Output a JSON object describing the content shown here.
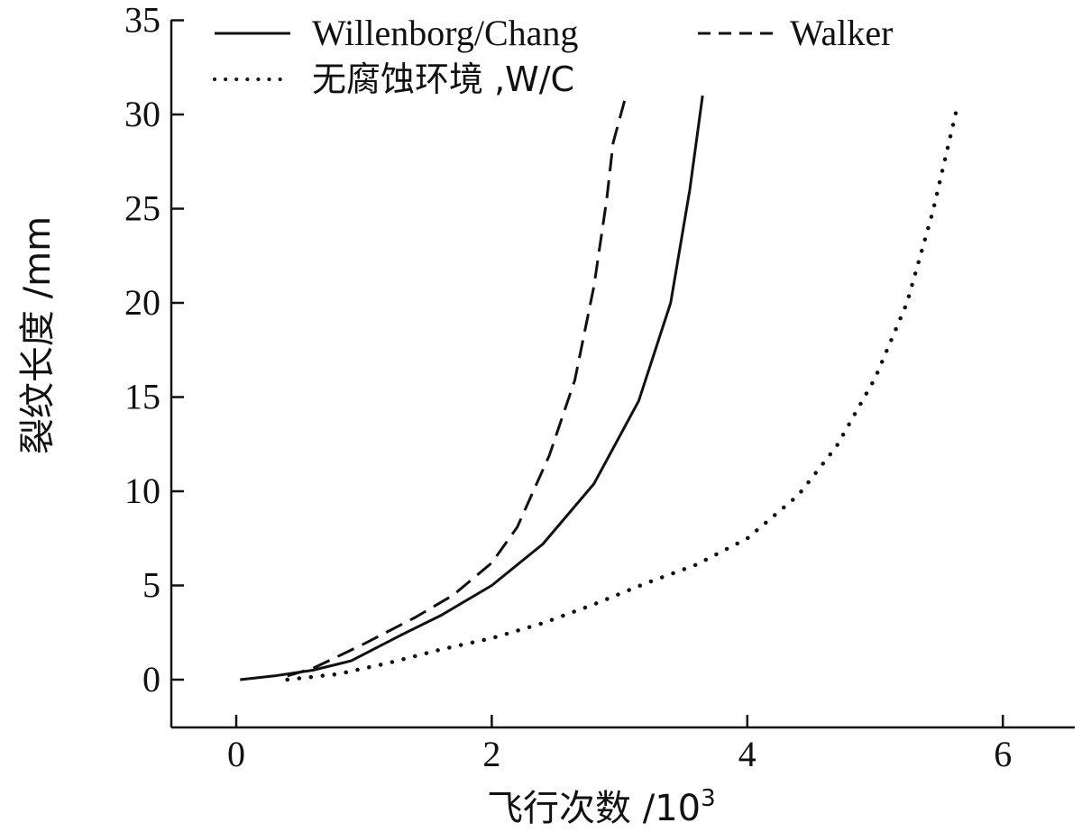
{
  "chart_data": {
    "type": "line",
    "xlabel": "飞行次数 /10",
    "xlabel_sup": "3",
    "ylabel": "裂纹长度 /mm",
    "xlim": [
      -0.5,
      6.5
    ],
    "ylim": [
      -2.5,
      35
    ],
    "xticks": [
      0,
      2,
      4,
      6
    ],
    "yticks": [
      0,
      5,
      10,
      15,
      20,
      25,
      30,
      35
    ],
    "legend_position": "top",
    "series": [
      {
        "name": "Willenborg/Chang",
        "style": "solid",
        "color": "#111111",
        "points": [
          [
            0.03,
            0
          ],
          [
            0.3,
            0.2
          ],
          [
            0.6,
            0.5
          ],
          [
            0.9,
            1.0
          ],
          [
            1.3,
            2.4
          ],
          [
            1.6,
            3.4
          ],
          [
            2.0,
            5.0
          ],
          [
            2.4,
            7.2
          ],
          [
            2.8,
            10.4
          ],
          [
            3.15,
            14.8
          ],
          [
            3.4,
            20.0
          ],
          [
            3.55,
            26.0
          ],
          [
            3.65,
            31.0
          ]
        ]
      },
      {
        "name": "Walker",
        "style": "dashed",
        "color": "#111111",
        "points": [
          [
            0.4,
            0.2
          ],
          [
            0.6,
            0.6
          ],
          [
            1.0,
            1.9
          ],
          [
            1.4,
            3.3
          ],
          [
            1.7,
            4.5
          ],
          [
            2.0,
            6.2
          ],
          [
            2.2,
            8.1
          ],
          [
            2.45,
            11.9
          ],
          [
            2.65,
            15.9
          ],
          [
            2.8,
            20.9
          ],
          [
            2.9,
            25.5
          ],
          [
            2.95,
            28.5
          ],
          [
            3.05,
            31.0
          ]
        ]
      },
      {
        "name": "无腐蚀环境 ,W/C",
        "style": "dotted",
        "color": "#111111",
        "points": [
          [
            0.4,
            0.0
          ],
          [
            0.8,
            0.3
          ],
          [
            1.2,
            0.9
          ],
          [
            1.6,
            1.6
          ],
          [
            2.0,
            2.2
          ],
          [
            2.4,
            3.0
          ],
          [
            2.8,
            4.0
          ],
          [
            3.2,
            5.1
          ],
          [
            3.6,
            6.1
          ],
          [
            4.0,
            7.5
          ],
          [
            4.4,
            9.8
          ],
          [
            4.7,
            12.4
          ],
          [
            5.0,
            16.0
          ],
          [
            5.25,
            20.0
          ],
          [
            5.45,
            24.8
          ],
          [
            5.65,
            30.6
          ]
        ]
      }
    ]
  }
}
